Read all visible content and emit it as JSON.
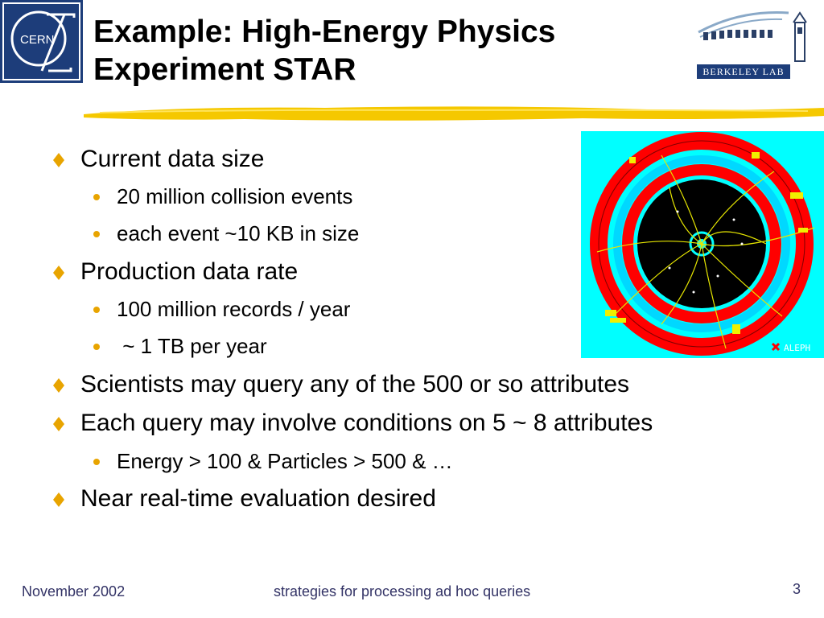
{
  "logos": {
    "cern_text": "CERN",
    "berkeley_text": "BERKELEY LAB",
    "aleph_text": "ALEPH"
  },
  "title": {
    "line1": "Example: High-Energy Physics",
    "line2": "Experiment STAR"
  },
  "colors": {
    "cern_blue": "#1d3d7a",
    "highlight_yellow": "#f5c800",
    "diamond_bullet": "#e8a400",
    "event_bg": "#00ffff",
    "detector_red": "#ff0000",
    "footer_text": "#333366"
  },
  "bullets": [
    {
      "text": "Current data size",
      "sub": [
        "20 million collision events",
        "each event ~10 KB in size"
      ]
    },
    {
      "text": "Production data rate",
      "sub": [
        "100 million records / year",
        " ~ 1 TB per year"
      ]
    },
    {
      "text": "Scientists may query any of the 500 or so attributes",
      "sub": []
    },
    {
      "text": "Each query may involve conditions on 5 ~ 8 attributes",
      "sub": [
        "Energy > 100 & Particles > 500 & …"
      ]
    },
    {
      "text": "Near real-time evaluation desired",
      "sub": []
    }
  ],
  "footer": {
    "date": "November 2002",
    "center": "strategies for processing ad hoc queries",
    "page": "3"
  }
}
